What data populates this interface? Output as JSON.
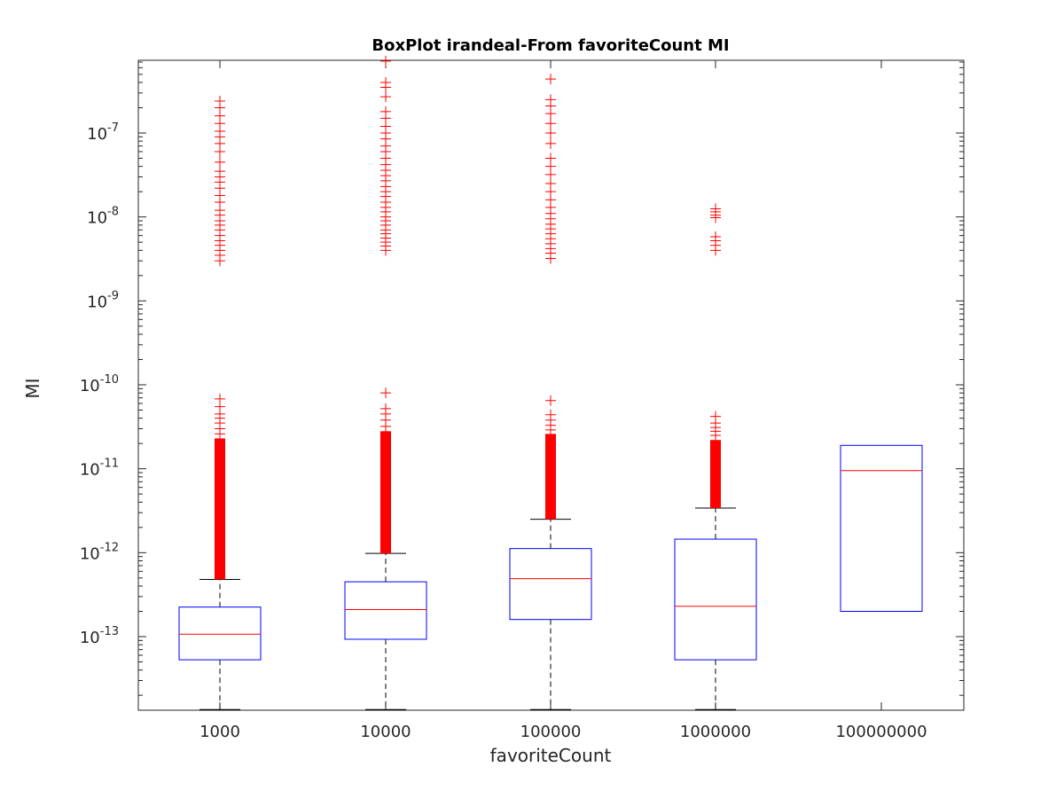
{
  "chart_data": {
    "type": "boxplot",
    "title": "BoxPlot irandeal-From favoriteCount MI",
    "xlabel": "favoriteCount",
    "ylabel": "MI",
    "yscale": "log",
    "ylim": [
      1.3e-14,
      7.5e-07
    ],
    "yticks": [
      {
        "base": "10",
        "exp": "-13",
        "value": 1e-13
      },
      {
        "base": "10",
        "exp": "-12",
        "value": 1e-12
      },
      {
        "base": "10",
        "exp": "-11",
        "value": 1e-11
      },
      {
        "base": "10",
        "exp": "-10",
        "value": 1e-10
      },
      {
        "base": "10",
        "exp": "-9",
        "value": 1e-09
      },
      {
        "base": "10",
        "exp": "-8",
        "value": 1e-08
      },
      {
        "base": "10",
        "exp": "-7",
        "value": 1e-07
      }
    ],
    "grid": false,
    "colors": {
      "box": "#0000ff",
      "median": "#ff0000",
      "outlier": "#ff0000",
      "whisker": "#000000"
    },
    "categories": [
      "1000",
      "10000",
      "100000",
      "1000000",
      "100000000"
    ],
    "boxes": [
      {
        "category": "1000",
        "whisker_low": 1.3e-14,
        "q1": 5.3e-14,
        "median": 1.07e-13,
        "q3": 2.25e-13,
        "whisker_high": 4.8e-13,
        "outliers_low_band": [
          4.8e-13,
          2.3e-11
        ],
        "outliers_sparse": [
          2.6e-11,
          3e-11,
          3.5e-11,
          4e-11,
          4.5e-11,
          5.5e-11,
          6.8e-11,
          3e-09,
          3.5e-09,
          4e-09,
          4.6e-09,
          5.2e-09,
          6e-09,
          7e-09,
          8e-09,
          9e-09,
          1.05e-08,
          1.2e-08,
          1.5e-08,
          1.8e-08,
          2.2e-08,
          2.6e-08,
          3e-08,
          3.5e-08,
          4.5e-08,
          6e-08,
          7.5e-08,
          9e-08,
          1.05e-07,
          1.3e-07,
          1.6e-07,
          2e-07,
          2.4e-07
        ]
      },
      {
        "category": "10000",
        "whisker_low": 1.3e-14,
        "q1": 9.3e-14,
        "median": 2.1e-13,
        "q3": 4.5e-13,
        "whisker_high": 9.8e-13,
        "outliers_low_band": [
          9.8e-13,
          2.8e-11
        ],
        "outliers_sparse": [
          3.2e-11,
          3.8e-11,
          4.5e-11,
          5.2e-11,
          8e-11,
          4e-09,
          4.5e-09,
          5e-09,
          5.6e-09,
          6.3e-09,
          7e-09,
          8e-09,
          9e-09,
          1e-08,
          1.15e-08,
          1.3e-08,
          1.5e-08,
          1.75e-08,
          2e-08,
          2.3e-08,
          2.7e-08,
          3.1e-08,
          3.6e-08,
          4.2e-08,
          5e-08,
          6e-08,
          7e-08,
          8.5e-08,
          1e-07,
          1.2e-07,
          1.5e-07,
          1.8e-07,
          2.7e-07,
          3.5e-07,
          4e-07,
          7.2e-07
        ]
      },
      {
        "category": "100000",
        "whisker_low": 1.3e-14,
        "q1": 1.6e-13,
        "median": 4.9e-13,
        "q3": 1.12e-12,
        "whisker_high": 2.5e-12,
        "outliers_low_band": [
          2.5e-12,
          2.6e-11
        ],
        "outliers_sparse": [
          2.9e-11,
          3.3e-11,
          3.8e-11,
          4.4e-11,
          6.5e-11,
          3.2e-09,
          3.7e-09,
          4.2e-09,
          4.8e-09,
          5.5e-09,
          6.3e-09,
          7.2e-09,
          8.2e-09,
          9.5e-09,
          1.1e-08,
          1.3e-08,
          1.6e-08,
          2e-08,
          2.5e-08,
          3.2e-08,
          4e-08,
          5e-08,
          7.5e-08,
          1e-07,
          1.3e-07,
          1.7e-07,
          2.1e-07,
          2.5e-07,
          4.4e-07
        ]
      },
      {
        "category": "1000000",
        "whisker_low": 1.3e-14,
        "q1": 5.3e-14,
        "median": 2.3e-13,
        "q3": 1.45e-12,
        "whisker_high": 3.4e-12,
        "outliers_low_band": [
          3.4e-12,
          2.2e-11
        ],
        "outliers_sparse": [
          2.5e-11,
          2.8e-11,
          3.1e-11,
          3.5e-11,
          4.2e-11,
          4e-09,
          4.6e-09,
          5.2e-09,
          5.8e-09,
          9.8e-09,
          1.05e-08,
          1.15e-08,
          1.25e-08
        ]
      },
      {
        "category": "100000000",
        "whisker_low": null,
        "q1": 2e-13,
        "median": 9.5e-12,
        "q3": 1.9e-11,
        "whisker_high": null,
        "outliers_low_band": null,
        "outliers_sparse": []
      }
    ]
  }
}
